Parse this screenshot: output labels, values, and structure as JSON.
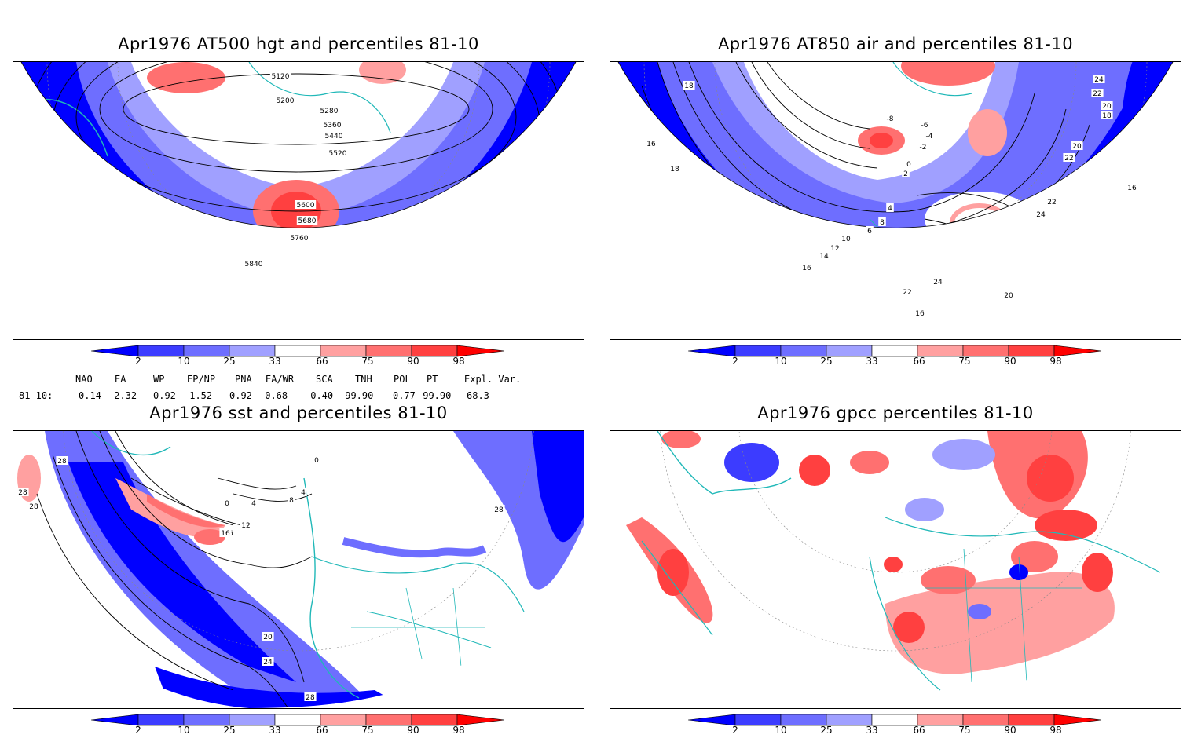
{
  "panels": {
    "p1": {
      "title": "Apr1976 AT500 hgt and percentiles 81-10",
      "contour_labels": [
        "5120",
        "5200",
        "5280",
        "5360",
        "5440",
        "5520",
        "5600",
        "5680",
        "5760",
        "5840"
      ]
    },
    "p2": {
      "title": "Apr1976 AT850 air and percentiles 81-10",
      "contour_labels": [
        "18",
        "16",
        "18",
        "-8",
        "-6",
        "-4",
        "-2",
        "0",
        "2",
        "4",
        "6",
        "8",
        "10",
        "12",
        "14",
        "16",
        "24",
        "22",
        "20",
        "18",
        "20",
        "22",
        "22",
        "24",
        "16",
        "24",
        "22",
        "20",
        "16"
      ]
    },
    "p3": {
      "title": "Apr1976 sst and percentiles 81-10",
      "contour_labels": [
        "28",
        "28",
        "0",
        "4",
        "8",
        "4",
        "12",
        "16",
        "16",
        "12",
        "28",
        "20",
        "24",
        "28",
        "28",
        "0"
      ]
    },
    "p4": {
      "title": "Apr1976 gpcc percentiles 81-10"
    }
  },
  "colorbar": {
    "labels": [
      "2",
      "10",
      "25",
      "33",
      "66",
      "75",
      "90",
      "98"
    ],
    "colors": {
      "blue_dark": "#0000ff",
      "blue_mid": "#3c3cff",
      "blue_light": "#6e6eff",
      "blue_pale": "#a0a0ff",
      "white": "#ffffff",
      "red_pale": "#ffa0a0",
      "red_light": "#ff7070",
      "red_mid": "#ff4040",
      "red_dark": "#ff0000"
    }
  },
  "indices": {
    "header": [
      "NAO",
      "EA",
      "WP",
      "EP/NP",
      "PNA",
      "EA/WR",
      "SCA",
      "TNH",
      "POL",
      "PT",
      "Expl. Var."
    ],
    "row_label": "81-10:",
    "values": [
      "0.14",
      "-2.32",
      "0.92",
      "-1.52",
      "0.92",
      "-0.68",
      "-0.40",
      "-99.90",
      "0.77",
      "-99.90",
      "68.3"
    ]
  },
  "map_colors": {
    "coast": "#20b8b8",
    "contour": "#000000",
    "grid": "#888888"
  }
}
